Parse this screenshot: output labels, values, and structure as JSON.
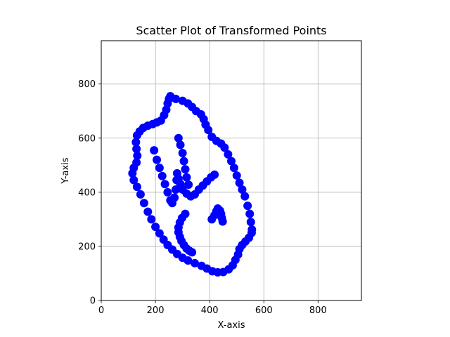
{
  "chart_data": {
    "type": "scatter",
    "title": "Scatter Plot of Transformed Points",
    "xlabel": "X-axis",
    "ylabel": "Y-axis",
    "xlim": [
      0,
      960
    ],
    "ylim": [
      0,
      960
    ],
    "xticks": [
      0,
      200,
      400,
      600,
      800
    ],
    "yticks": [
      0,
      200,
      400,
      600,
      800
    ],
    "grid": true,
    "marker_color": "#0000ff",
    "series": [
      {
        "values": [
          [
            255,
            755
          ],
          [
            275,
            745
          ],
          [
            300,
            738
          ],
          [
            320,
            728
          ],
          [
            335,
            715
          ],
          [
            350,
            700
          ],
          [
            368,
            688
          ],
          [
            378,
            670
          ],
          [
            385,
            650
          ],
          [
            395,
            630
          ],
          [
            408,
            605
          ],
          [
            425,
            590
          ],
          [
            442,
            580
          ],
          [
            455,
            565
          ],
          [
            468,
            540
          ],
          [
            480,
            515
          ],
          [
            490,
            490
          ],
          [
            500,
            462
          ],
          [
            510,
            435
          ],
          [
            520,
            410
          ],
          [
            530,
            385
          ],
          [
            540,
            350
          ],
          [
            548,
            320
          ],
          [
            552,
            290
          ],
          [
            556,
            262
          ],
          [
            555,
            250
          ],
          [
            545,
            232
          ],
          [
            532,
            218
          ],
          [
            520,
            205
          ],
          [
            510,
            190
          ],
          [
            505,
            170
          ],
          [
            495,
            150
          ],
          [
            485,
            130
          ],
          [
            470,
            115
          ],
          [
            450,
            105
          ],
          [
            430,
            104
          ],
          [
            410,
            108
          ],
          [
            390,
            118
          ],
          [
            370,
            128
          ],
          [
            345,
            138
          ],
          [
            320,
            148
          ],
          [
            300,
            158
          ],
          [
            280,
            172
          ],
          [
            262,
            188
          ],
          [
            245,
            205
          ],
          [
            230,
            225
          ],
          [
            215,
            248
          ],
          [
            200,
            272
          ],
          [
            185,
            300
          ],
          [
            172,
            328
          ],
          [
            158,
            360
          ],
          [
            145,
            392
          ],
          [
            132,
            420
          ],
          [
            120,
            445
          ],
          [
            115,
            470
          ],
          [
            120,
            490
          ],
          [
            130,
            510
          ],
          [
            133,
            535
          ],
          [
            130,
            560
          ],
          [
            128,
            585
          ],
          [
            132,
            610
          ],
          [
            142,
            625
          ],
          [
            155,
            638
          ],
          [
            172,
            646
          ],
          [
            190,
            652
          ],
          [
            205,
            658
          ],
          [
            220,
            665
          ],
          [
            232,
            685
          ],
          [
            240,
            705
          ],
          [
            245,
            728
          ],
          [
            250,
            745
          ],
          [
            195,
            555
          ],
          [
            205,
            520
          ],
          [
            215,
            490
          ],
          [
            225,
            460
          ],
          [
            235,
            430
          ],
          [
            245,
            400
          ],
          [
            255,
            370
          ],
          [
            262,
            360
          ],
          [
            270,
            380
          ],
          [
            275,
            410
          ],
          [
            278,
            445
          ],
          [
            280,
            470
          ],
          [
            285,
            450
          ],
          [
            292,
            430
          ],
          [
            300,
            410
          ],
          [
            315,
            395
          ],
          [
            330,
            385
          ],
          [
            345,
            392
          ],
          [
            360,
            410
          ],
          [
            375,
            425
          ],
          [
            390,
            440
          ],
          [
            405,
            455
          ],
          [
            418,
            465
          ],
          [
            285,
            600
          ],
          [
            292,
            575
          ],
          [
            300,
            545
          ],
          [
            305,
            515
          ],
          [
            310,
            485
          ],
          [
            315,
            455
          ],
          [
            322,
            428
          ],
          [
            310,
            320
          ],
          [
            298,
            305
          ],
          [
            290,
            288
          ],
          [
            285,
            270
          ],
          [
            285,
            252
          ],
          [
            290,
            235
          ],
          [
            296,
            220
          ],
          [
            305,
            205
          ],
          [
            315,
            192
          ],
          [
            325,
            184
          ],
          [
            335,
            178
          ],
          [
            408,
            300
          ],
          [
            418,
            315
          ],
          [
            425,
            330
          ],
          [
            430,
            340
          ],
          [
            438,
            332
          ],
          [
            442,
            320
          ],
          [
            445,
            305
          ],
          [
            448,
            292
          ]
        ]
      }
    ]
  }
}
